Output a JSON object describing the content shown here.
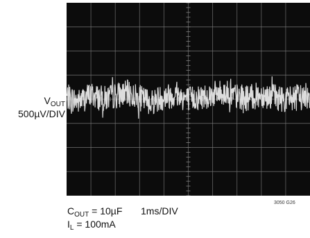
{
  "chart_data": {
    "type": "line",
    "title": "",
    "ylabel": {
      "line1_main": "V",
      "line1_sub": "OUT",
      "line2": "500µV/DIV"
    },
    "xlabel": "1ms/DIV",
    "conditions": [
      {
        "main": "C",
        "sub": "OUT",
        "rest": " = 10µF"
      },
      {
        "main": "I",
        "sub": "L",
        "rest": " = 100mA"
      }
    ],
    "figure_id": "3050 G26",
    "graticule": {
      "x_divisions": 10,
      "y_divisions": 8,
      "grid": true
    },
    "xlim": [
      0,
      10
    ],
    "ylim": [
      -4,
      4
    ],
    "x_unit": "ms",
    "y_unit": "div (500µV/div)",
    "series": [
      {
        "trace": "output noise",
        "x": [
          0,
          0.5,
          1,
          1.5,
          2,
          2.5,
          3,
          3.5,
          4,
          4.5,
          5,
          5.5,
          6,
          6.5,
          7,
          7.5,
          8,
          8.5,
          9,
          9.5,
          10
        ],
        "y": [
          0.1,
          -0.1,
          0.2,
          0.0,
          0.15,
          0.25,
          0.05,
          -0.1,
          0.1,
          0.2,
          0.0,
          0.1,
          0.2,
          0.3,
          0.1,
          0.05,
          0.2,
          0.1,
          0.0,
          0.1,
          0.15
        ],
        "noise_peak_to_peak_div": 1.1
      }
    ],
    "colors": {
      "screen": "#0c0c0c",
      "grid": "#7a7a7a",
      "trace": "#e8e8e8"
    }
  }
}
